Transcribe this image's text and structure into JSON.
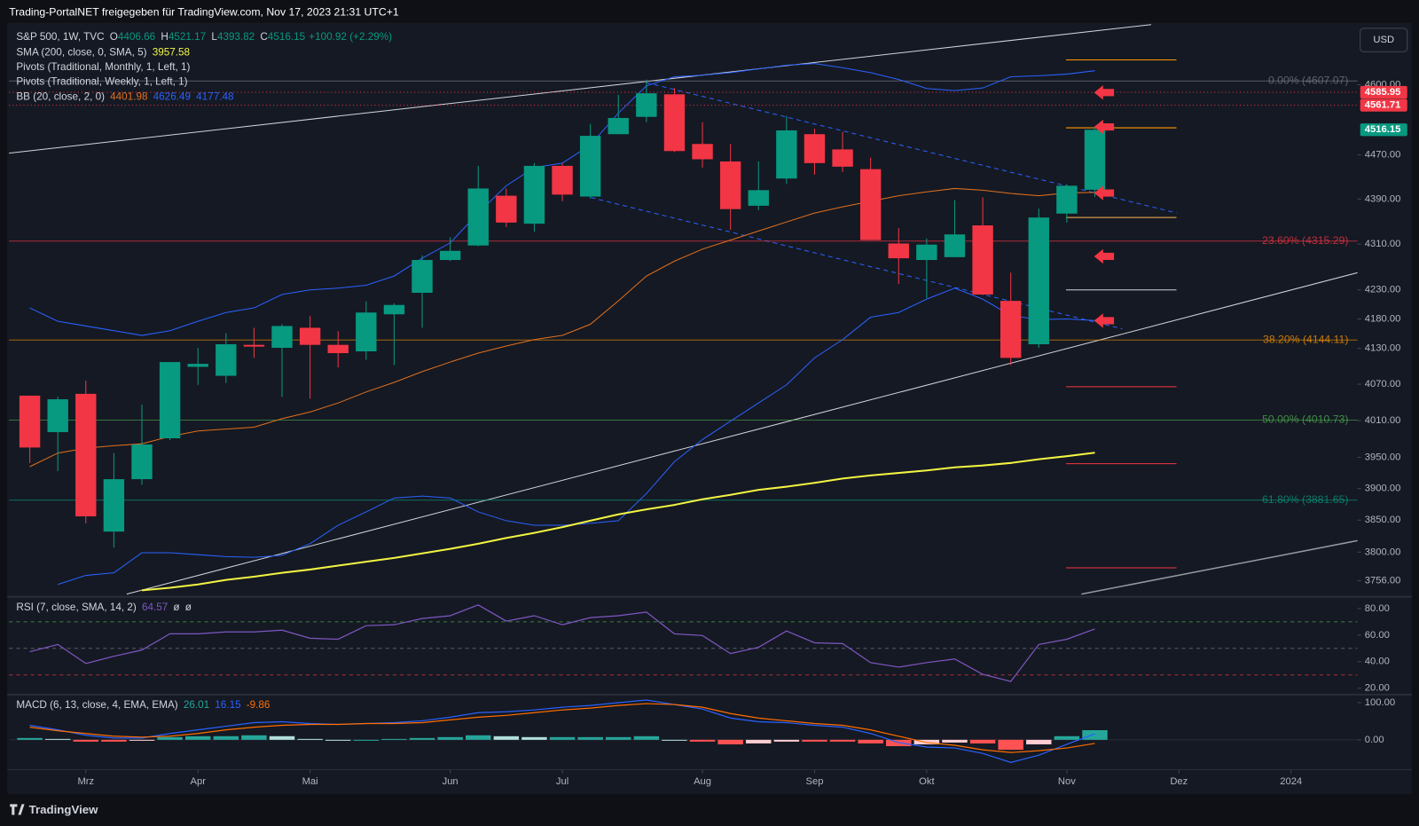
{
  "header": "Trading-PortalNET freigegeben für TradingView.com, Nov 17, 2023 21:31 UTC+1",
  "currency_button": "USD",
  "footer_logo": "TradingView",
  "chart_data": {
    "type": "candlestick",
    "symbol": "S&P 500, 1W, TVC",
    "ohlc_prefixes": [
      "O",
      "H",
      "L",
      "C"
    ],
    "change": "+100.92 (+2.29%)",
    "up_color": "#089981",
    "down_color": "#f23645",
    "log_scale": true,
    "categories": [
      null,
      null,
      null,
      null,
      null,
      null,
      null,
      null,
      null,
      null,
      null,
      null,
      null,
      null,
      null,
      null,
      null,
      null,
      null,
      null,
      null,
      null,
      null,
      null,
      null,
      null,
      null,
      null,
      null,
      null,
      null,
      null,
      null,
      null,
      null,
      null,
      null,
      null,
      null
    ],
    "xlim": [
      -0.74,
      47.37
    ],
    "xticks": [
      {
        "value": 2,
        "label": "Mrz"
      },
      {
        "value": 6,
        "label": "Apr"
      },
      {
        "value": 10,
        "label": "Mai"
      },
      {
        "value": 15,
        "label": "Jun"
      },
      {
        "value": 19,
        "label": "Jul"
      },
      {
        "value": 24,
        "label": "Aug"
      },
      {
        "value": 28,
        "label": "Sep"
      },
      {
        "value": 32,
        "label": "Okt"
      },
      {
        "value": 37,
        "label": "Nov"
      },
      {
        "value": 41,
        "label": "Dez"
      },
      {
        "value": 45,
        "label": "2024"
      }
    ],
    "ylim": [
      3734,
      4718
    ],
    "yticks": [
      {
        "value": 3756,
        "label": "3756.00"
      },
      {
        "value": 3800,
        "label": "3800.00"
      },
      {
        "value": 3850,
        "label": "3850.00"
      },
      {
        "value": 3900,
        "label": "3900.00"
      },
      {
        "value": 3950,
        "label": "3950.00"
      },
      {
        "value": 4010,
        "label": "4010.00"
      },
      {
        "value": 4070,
        "label": "4070.00"
      },
      {
        "value": 4130,
        "label": "4130.00"
      },
      {
        "value": 4180,
        "label": "4180.00"
      },
      {
        "value": 4230,
        "label": "4230.00"
      },
      {
        "value": 4310,
        "label": "4310.00"
      },
      {
        "value": 4390,
        "label": "4390.00"
      },
      {
        "value": 4470,
        "label": "4470.00"
      },
      {
        "value": 4600,
        "label": "4600.00"
      }
    ],
    "open": [
      4051,
      3991,
      4054,
      3832,
      3915,
      3981,
      4099,
      4084,
      4136,
      4131,
      4165,
      4136,
      4125,
      4188,
      4225,
      4282,
      4307.5,
      4396,
      4346,
      4450,
      4394.5,
      4508,
      4540,
      4582,
      4490,
      4458,
      4378,
      4427,
      4508,
      4480,
      4444,
      4311,
      4282,
      4287,
      4343,
      4211,
      4137,
      4364,
      4406.66
    ],
    "high": [
      4051,
      4049,
      4076,
      3957,
      4036,
      4107,
      4131,
      4156,
      4165,
      4171,
      4185,
      4159,
      4210,
      4207,
      4290,
      4322,
      4450,
      4409,
      4455,
      4455,
      4527,
      4581,
      4610,
      4594,
      4530,
      4490,
      4458,
      4542,
      4518,
      4512,
      4465,
      4338,
      4320,
      4388,
      4393,
      4260,
      4373,
      4417,
      4521.17
    ],
    "low": [
      3941,
      3928,
      3845,
      3807,
      3906,
      3978,
      4069,
      4072,
      4114,
      4049,
      4046,
      4098,
      4111,
      4102,
      4165,
      4280,
      4306,
      4340,
      4332,
      4386,
      4391,
      4508,
      4530,
      4475,
      4447,
      4335,
      4370,
      4417,
      4434,
      4439,
      4317,
      4240,
      4216,
      4287,
      4221,
      4102,
      4131,
      4348,
      4393.82
    ],
    "close": [
      3966,
      4045,
      3856,
      3915,
      3971,
      4107,
      4104,
      4137,
      4133,
      4168,
      4136,
      4122,
      4191,
      4204,
      4282,
      4298,
      4409,
      4348,
      4450,
      4398,
      4505,
      4538,
      4584,
      4477,
      4462,
      4372,
      4406,
      4515,
      4455,
      4448.5,
      4317,
      4285,
      4309,
      4327,
      4222,
      4114,
      4357,
      4414,
      4516.15
    ],
    "sma": {
      "name": "SMA (200, close, 0, SMA, 5)",
      "color": "#f2f542",
      "values": [
        null,
        null,
        null,
        null,
        3741,
        3745,
        3750,
        3757,
        3762,
        3768,
        3773,
        3779,
        3785,
        3791,
        3798,
        3805,
        3813,
        3822,
        3830,
        3839,
        3849,
        3859,
        3867,
        3874,
        3883,
        3890,
        3898,
        3903,
        3909,
        3916,
        3921,
        3925,
        3929,
        3934,
        3937,
        3941,
        3947,
        3952,
        3957.58
      ]
    },
    "pivot_labels": [
      "Pivots (Traditional, Monthly, 1, Left, 1)",
      "Pivots (Traditional, Weekly, 1, Left, 1)"
    ],
    "bb": {
      "name": "BB (20, close, 2, 0)",
      "series": [
        {
          "color": "#e0701e",
          "values": [
            3935,
            3957,
            3965,
            3969,
            3972,
            3984,
            3993,
            3996,
            3999,
            4013,
            4024,
            4039,
            4057,
            4073,
            4091,
            4107,
            4122,
            4134,
            4145,
            4152,
            4171,
            4211,
            4254,
            4280,
            4301,
            4317,
            4333,
            4349,
            4365,
            4376,
            4386,
            4396,
            4403,
            4409,
            4406,
            4400,
            4396,
            4401,
            4401.98
          ]
        },
        {
          "color": "#2962ff",
          "values": [
            4199,
            4176,
            4168,
            4160,
            4152,
            4160,
            4176,
            4191,
            4199,
            4222,
            4230,
            4233,
            4238,
            4254,
            4285,
            4312,
            4365,
            4414,
            4447,
            4455,
            4488,
            4547,
            4598,
            4615,
            4618,
            4623,
            4630,
            4637,
            4640,
            4632,
            4623,
            4610,
            4593,
            4589,
            4594,
            4615,
            4617,
            4620,
            4626.49
          ]
        },
        {
          "color": "#2962ff",
          "values": [
            null,
            3750,
            3764,
            3768,
            3799,
            3799,
            3796,
            3793,
            3792,
            3795,
            3813,
            3842,
            3863,
            3885,
            3888,
            3885,
            3863,
            3849,
            3842,
            3842,
            3845,
            3849,
            3892,
            3943,
            3979,
            4009,
            4039,
            4069,
            4114,
            4145,
            4183,
            4191,
            4214,
            4233,
            4214,
            4186,
            4179,
            4180,
            4177.48
          ]
        }
      ]
    },
    "fib_levels": [
      {
        "value": 4607.07,
        "label": "0.00% (4607.07)",
        "color": "#787b86"
      },
      {
        "value": 4315.29,
        "label": "23.60% (4315.29)",
        "color": "#f23645"
      },
      {
        "value": 4144.11,
        "label": "38.20% (4144.11)",
        "color": "#ff9800"
      },
      {
        "value": 4010.73,
        "label": "50.00% (4010.73)",
        "color": "#4caf50"
      },
      {
        "value": 3881.65,
        "label": "61.80% (3881.65)",
        "color": "#089981"
      }
    ],
    "price_marks": [
      {
        "value": 4585.95,
        "color": "#f23645"
      },
      {
        "value": 4561.71,
        "color": "#f23645"
      }
    ],
    "rsi": {
      "name": "RSI (7, close, SMA, 14, 2)",
      "color": "#7e57c2",
      "na_marks": [
        "ø",
        "ø"
      ],
      "ylim": [
        16.6,
        86.8
      ],
      "yticks": [
        {
          "value": 20,
          "label": "20.00"
        },
        {
          "value": 40,
          "label": "40.00"
        },
        {
          "value": 60,
          "label": "60.00"
        },
        {
          "value": 80,
          "label": "80.00"
        }
      ],
      "bands": [
        {
          "value": 70,
          "color": "#4caf50"
        },
        {
          "value": 50,
          "color": "#787b86"
        },
        {
          "value": 30,
          "color": "#f23645"
        }
      ],
      "values": [
        47.5,
        52.9,
        38.6,
        44.1,
        48.8,
        61.0,
        61.0,
        62.4,
        62.4,
        63.7,
        57.6,
        56.9,
        67.1,
        67.8,
        72.5,
        74.6,
        82.7,
        70.5,
        74.6,
        67.8,
        73.2,
        74.6,
        77.3,
        61.0,
        59.7,
        46.1,
        50.8,
        63.1,
        54.2,
        53.6,
        39.3,
        35.9,
        39.3,
        42.0,
        30.5,
        25.1,
        52.9,
        56.9,
        64.57
      ]
    },
    "macd": {
      "name": "MACD (6, 13, close, 4, EMA, EMA)",
      "ylim": [
        -80.5,
        117.1
      ],
      "yticks": [
        {
          "value": 0,
          "label": "0.00"
        },
        {
          "value": 100,
          "label": "100.00"
        }
      ],
      "histogram_colors": [
        "#26a69a",
        "#b2dfdb",
        "#ff5252",
        "#ffcdd2"
      ],
      "histogram": [
        4.9,
        2.4,
        -4.9,
        -4.9,
        -2.4,
        7.3,
        9.7,
        9.8,
        12.2,
        9.8,
        2.4,
        0,
        0,
        2.4,
        4.9,
        7.3,
        12.2,
        9.7,
        7.3,
        7.3,
        7.3,
        7.3,
        9.7,
        0,
        -4.9,
        -12.2,
        -9.7,
        -4.9,
        -4.9,
        -4.9,
        -9.7,
        -17.1,
        -12.2,
        -7.4,
        -9.8,
        -26.9,
        -12.2,
        9.8,
        26.01
      ],
      "macd_color": "#2962ff",
      "macd": [
        39.0,
        26.8,
        12.2,
        4.9,
        4.9,
        17.1,
        26.8,
        36.6,
        46.3,
        48.8,
        43.9,
        41.5,
        43.9,
        46.3,
        51.2,
        61.0,
        73.2,
        75.6,
        80.5,
        87.8,
        92.7,
        100,
        107.3,
        95.1,
        82.9,
        58.5,
        48.8,
        46.3,
        39.0,
        34.1,
        17.1,
        -7.3,
        -19.5,
        -22.0,
        -36.6,
        -61.0,
        -41.5,
        -12.2,
        16.15
      ],
      "signal_color": "#ff6d00",
      "signal": [
        34.1,
        24.4,
        17.1,
        9.8,
        7.3,
        9.8,
        17.1,
        26.8,
        34.1,
        39.0,
        41.5,
        41.5,
        43.9,
        43.9,
        46.3,
        53.7,
        61.0,
        65.9,
        73.2,
        80.5,
        85.4,
        92.7,
        97.6,
        95.1,
        87.8,
        70.7,
        58.5,
        51.2,
        43.9,
        39.0,
        26.8,
        9.8,
        -7.3,
        -14.6,
        -26.8,
        -34.1,
        -29.3,
        -22.0,
        -9.86
      ]
    }
  }
}
